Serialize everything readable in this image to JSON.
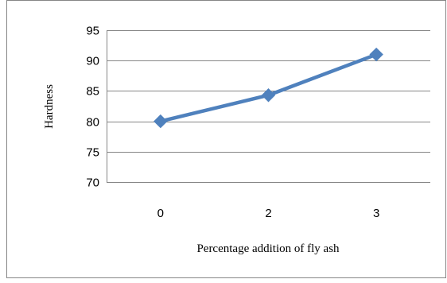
{
  "chart_data": {
    "type": "line",
    "title": "",
    "xlabel": "Percentage addition of fly ash",
    "ylabel": "Hardness",
    "categories": [
      "0",
      "2",
      "3"
    ],
    "series": [
      {
        "values": [
          80,
          84.3,
          91
        ],
        "color": "#4F81BD",
        "marker": "diamond"
      }
    ],
    "ylim": [
      70,
      95
    ],
    "yticks": [
      70,
      75,
      80,
      85,
      90,
      95
    ],
    "grid": true,
    "legend": "none"
  },
  "colors": {
    "line": "#4F81BD",
    "marker": "#4F81BD",
    "grid": "#868686",
    "frame": "#868686"
  }
}
